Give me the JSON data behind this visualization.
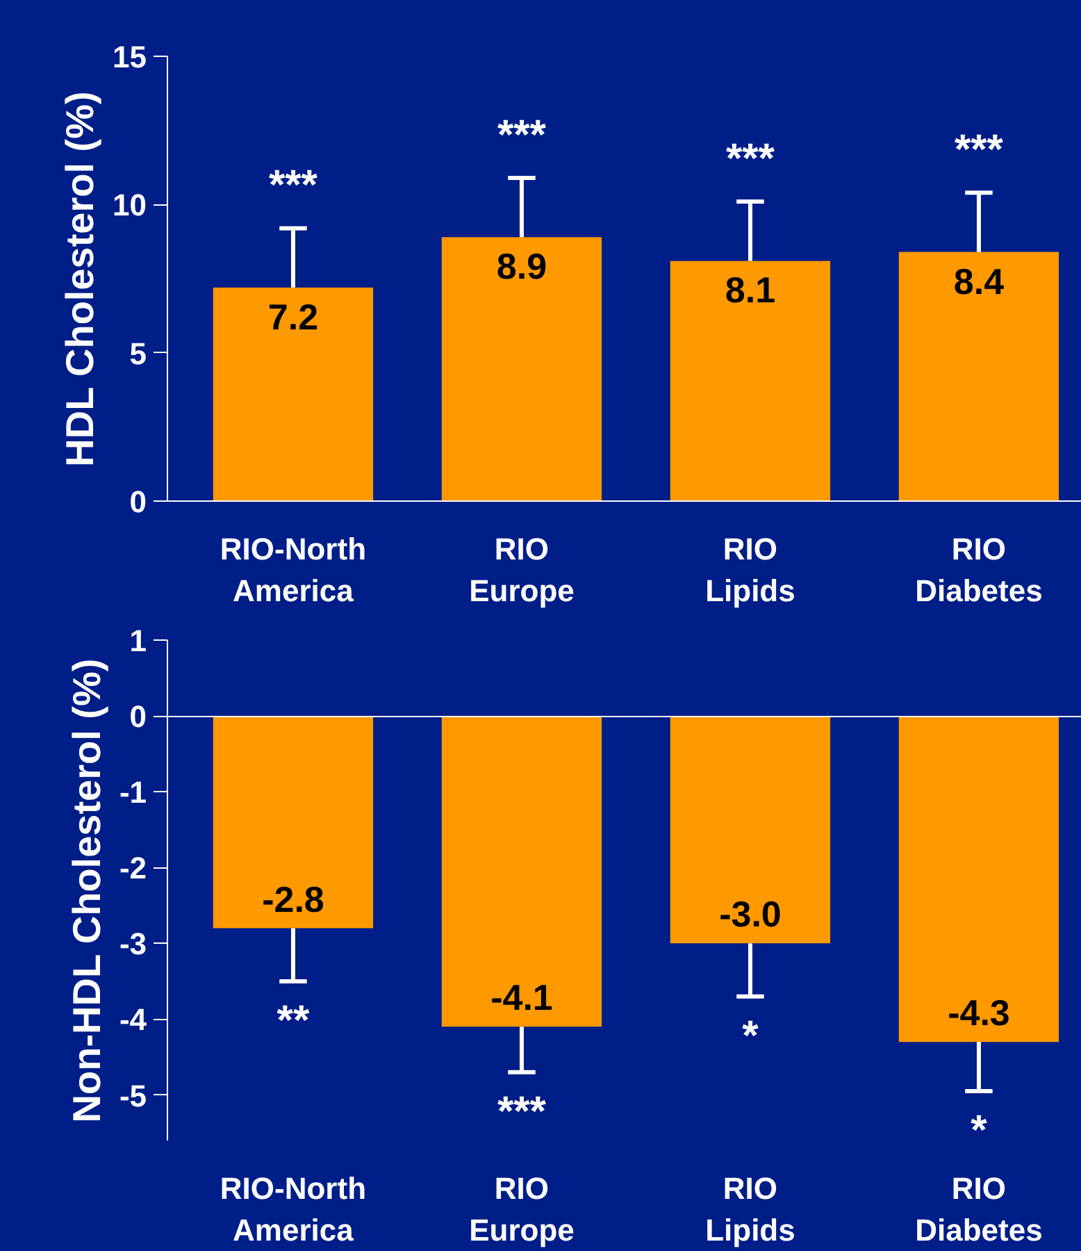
{
  "chart_data": [
    {
      "type": "bar",
      "ylabel": "HDL Cholesterol (%)",
      "categories": [
        "RIO-North America",
        "RIO Europe",
        "RIO Lipids",
        "RIO Diabetes"
      ],
      "values": [
        7.2,
        8.9,
        8.1,
        8.4
      ],
      "color": "#ff9900",
      "errors": [
        [
          7.2,
          9.2
        ],
        [
          8.9,
          10.9
        ],
        [
          8.1,
          10.1
        ],
        [
          8.4,
          10.4
        ]
      ],
      "ylim": [
        0,
        15
      ],
      "yticks": [
        0,
        5,
        10,
        15
      ],
      "value_labels": [
        "7.2",
        "8.9",
        "8.1",
        "8.4"
      ],
      "annotations": [
        {
          "text": "***",
          "x": "RIO-North America",
          "y": 9.2
        },
        {
          "text": "***",
          "x": "RIO Europe",
          "y": 10.9
        },
        {
          "text": "***",
          "x": "RIO Lipids",
          "y": 10.1
        },
        {
          "text": "***",
          "x": "RIO Diabetes",
          "y": 10.4
        }
      ]
    },
    {
      "type": "bar",
      "ylabel": "Non-HDL Cholesterol (%)",
      "categories": [
        "RIO-North America",
        "RIO Europe",
        "RIO Lipids",
        "RIO Diabetes"
      ],
      "values": [
        -2.8,
        -4.1,
        -3.0,
        -4.3
      ],
      "color": "#ff9900",
      "errors": [
        [
          -3.5,
          -2.8
        ],
        [
          -4.7,
          -4.1
        ],
        [
          -3.7,
          -3.0
        ],
        [
          -4.95,
          -4.3
        ]
      ],
      "ylim": [
        -5.6,
        1
      ],
      "yticks": [
        -5,
        -4,
        -3,
        -2,
        -1,
        0,
        1
      ],
      "value_labels": [
        "-2.8",
        "-4.1",
        "-3.0",
        "-4.3"
      ],
      "annotations": [
        {
          "text": "**",
          "x": "RIO-North America",
          "y": -3.5
        },
        {
          "text": "***",
          "x": "RIO Europe",
          "y": -4.7
        },
        {
          "text": "*",
          "x": "RIO Lipids",
          "y": -3.7
        },
        {
          "text": "*",
          "x": "RIO Diabetes",
          "y": -4.95
        }
      ]
    }
  ]
}
